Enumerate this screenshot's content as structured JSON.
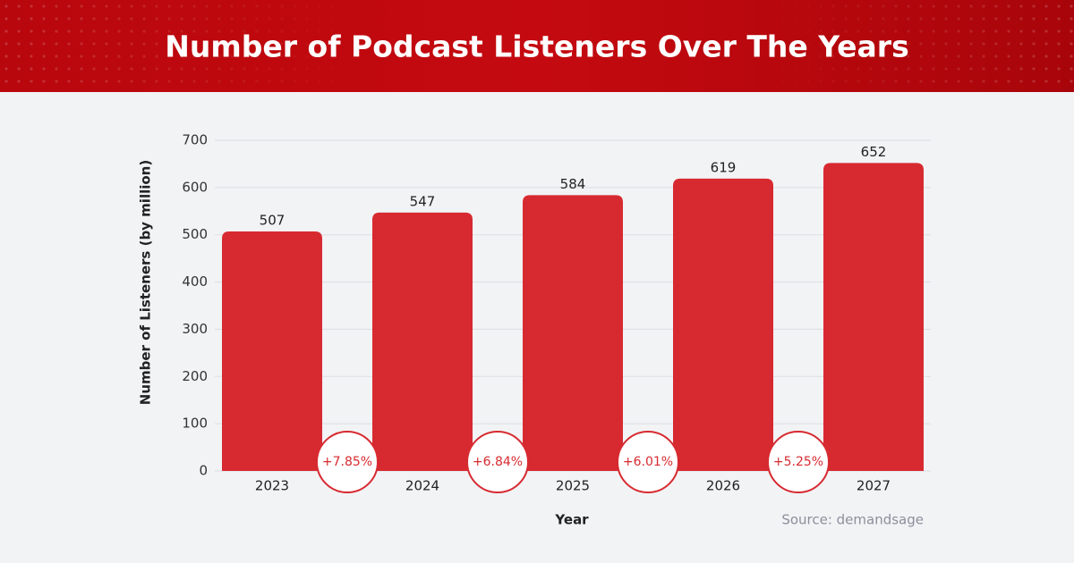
{
  "chart_data": {
    "type": "bar",
    "title": "Number of Podcast Listeners Over The Years",
    "x_label": "Year",
    "y_label": "Number of Listeners (by million)",
    "categories": [
      "2023",
      "2024",
      "2025",
      "2026",
      "2027"
    ],
    "values": [
      507,
      547,
      584,
      619,
      652
    ],
    "color": "#d72a30",
    "growth_labels": [
      "+7.85%",
      "+6.84%",
      "+6.01%",
      "+5.25%"
    ],
    "ylim": [
      0,
      700
    ],
    "yticks": [
      0,
      100,
      200,
      300,
      400,
      500,
      600,
      700
    ],
    "grid": true,
    "source": "Source: demandsage"
  }
}
